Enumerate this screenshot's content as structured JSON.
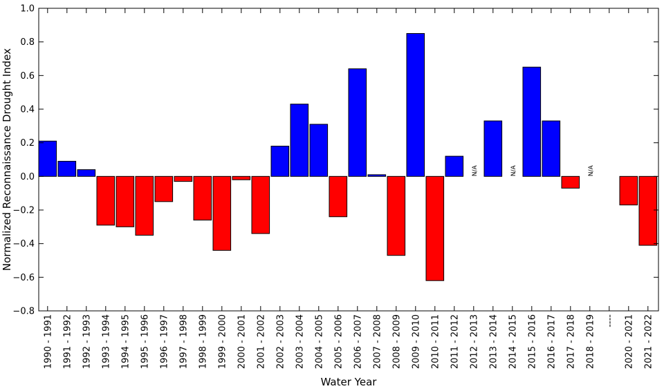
{
  "chart_data": {
    "type": "bar",
    "xlabel": "Water Year",
    "ylabel": "Normalized Reconnaissance Drought Index",
    "ylim": [
      -0.8,
      1.0
    ],
    "yticks": [
      -0.8,
      -0.6,
      -0.4,
      -0.2,
      0.0,
      0.2,
      0.4,
      0.6,
      0.8,
      1.0
    ],
    "ytick_labels": [
      "−0.8",
      "−0.6",
      "−0.4",
      "−0.2",
      "0.0",
      "0.2",
      "0.4",
      "0.6",
      "0.8",
      "1.0"
    ],
    "grid": false,
    "legend": "none",
    "positive_color": "#0000ff",
    "negative_color": "#ff0000",
    "missing_label": "N/A",
    "categories": [
      "1990 - 1991",
      "1991 - 1992",
      "1992 - 1993",
      "1993 - 1994",
      "1994 - 1995",
      "1995 - 1996",
      "1996 - 1997",
      "1997 - 1998",
      "1998 - 1999",
      "1999 - 2000",
      "2000 - 2001",
      "2001 - 2002",
      "2002 - 2003",
      "2003 - 2004",
      "2004 - 2005",
      "2005 - 2006",
      "2006 - 2007",
      "2007 - 2008",
      "2008 - 2009",
      "2009 - 2010",
      "2010 - 2011",
      "2011 - 2012",
      "2012 - 2013",
      "2013 - 2014",
      "2014 - 2015",
      "2015 - 2016",
      "2016 - 2017",
      "2017 - 2018",
      "2018 - 2019",
      "----",
      "2020 - 2021",
      "2021 - 2022"
    ],
    "values": [
      0.21,
      0.09,
      0.04,
      -0.29,
      -0.3,
      -0.35,
      -0.15,
      -0.03,
      -0.26,
      -0.44,
      -0.02,
      -0.34,
      0.18,
      0.43,
      0.31,
      -0.24,
      0.64,
      0.01,
      -0.47,
      0.85,
      -0.62,
      0.12,
      null,
      0.33,
      null,
      0.65,
      0.33,
      -0.07,
      null,
      null,
      -0.17,
      -0.41
    ]
  }
}
